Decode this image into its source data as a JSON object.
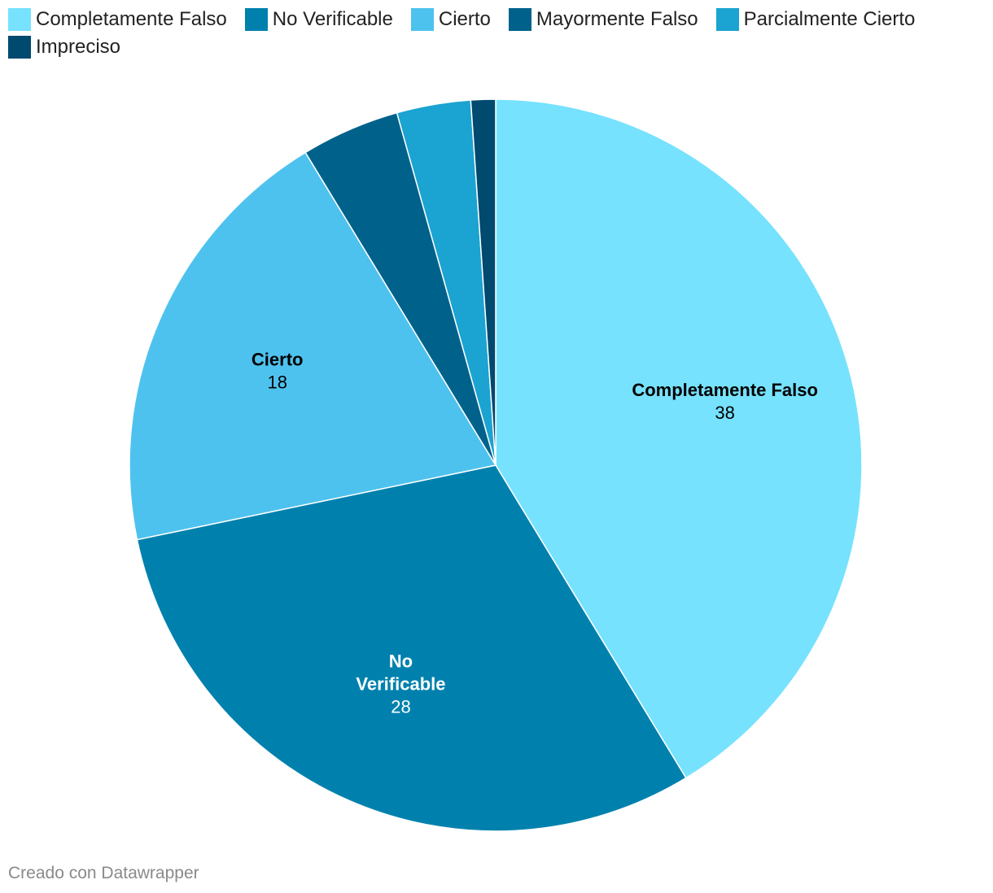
{
  "chart_data": {
    "type": "pie",
    "title": "",
    "legend_position": "top-left",
    "categories": [
      "Completamente Falso",
      "No Verificable",
      "Cierto",
      "Mayormente Falso",
      "Parcialmente Cierto",
      "Impreciso"
    ],
    "values": [
      38,
      28,
      18,
      4,
      3,
      1
    ],
    "colors": [
      "#76e2fe",
      "#0081ad",
      "#4ec2ee",
      "#00628b",
      "#1ba3d1",
      "#00496f"
    ],
    "slice_labels": [
      {
        "lines": [
          "Completamente Falso"
        ],
        "value": "38",
        "text_color": "#000000"
      },
      {
        "lines": [
          "No",
          "Verificable"
        ],
        "value": "28",
        "text_color": "#ffffff"
      },
      {
        "lines": [
          "Cierto"
        ],
        "value": "18",
        "text_color": "#000000"
      },
      null,
      null,
      null
    ]
  },
  "footer": {
    "credit": "Creado con Datawrapper"
  }
}
